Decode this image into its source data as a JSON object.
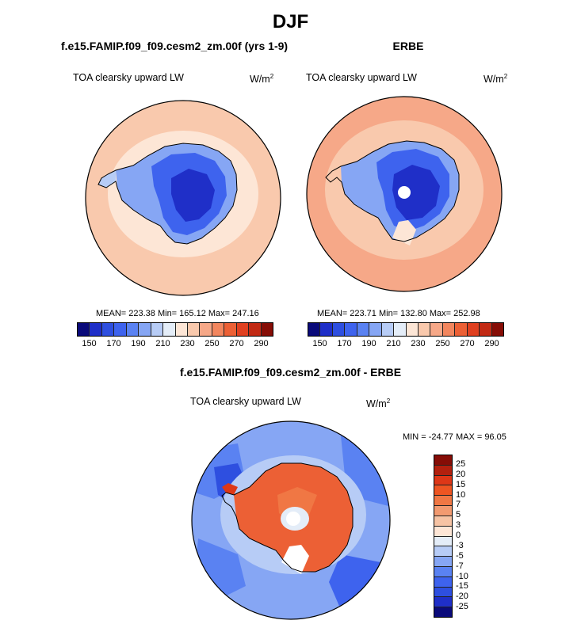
{
  "title": "DJF",
  "panels": [
    {
      "title": "f.e15.FAMIP.f09_f09.cesm2_zm.00f (yrs 1-9)",
      "variable": "TOA clearsky upward LW",
      "units_base": "W/m",
      "units_exp": "2",
      "stats": "MEAN= 223.38  Min= 165.12  Max= 247.16"
    },
    {
      "title": "ERBE",
      "variable": "TOA clearsky upward LW",
      "units_base": "W/m",
      "units_exp": "2",
      "stats": "MEAN= 223.71  Min= 132.80  Max= 252.98"
    },
    {
      "title": "f.e15.FAMIP.f09_f09.cesm2_zm.00f - ERBE",
      "variable": "TOA clearsky upward LW",
      "units_base": "W/m",
      "units_exp": "2",
      "stats": "MIN = -24.77 MAX =  96.05"
    }
  ],
  "colorbar_abs": {
    "colors": [
      "#0a0a7a",
      "#1f2fc8",
      "#2e4fe0",
      "#3e63ee",
      "#5a82f2",
      "#86a6f4",
      "#b7ccf6",
      "#e4edf8",
      "#fde6d6",
      "#f9c9ad",
      "#f6a888",
      "#f2865e",
      "#ec6035",
      "#e04020",
      "#c22a14",
      "#860d06"
    ],
    "ticks": [
      "150",
      "170",
      "190",
      "210",
      "230",
      "250",
      "270",
      "290"
    ]
  },
  "colorbar_diff": {
    "colors": [
      "#860d06",
      "#b3200e",
      "#de3717",
      "#ee5522",
      "#f07744",
      "#f29a70",
      "#f6c3a4",
      "#fde6d6",
      "#e4edf8",
      "#b7ccf6",
      "#86a6f4",
      "#5a82f2",
      "#3e63ee",
      "#2e4fe0",
      "#1f2fc8",
      "#0a0a7a"
    ],
    "labels": [
      "25",
      "20",
      "15",
      "10",
      "7",
      "5",
      "3",
      "0",
      "-3",
      "-5",
      "-7",
      "-10",
      "-15",
      "-20",
      "-25"
    ]
  },
  "chart_data": [
    {
      "type": "heatmap",
      "projection": "south-polar-stereographic",
      "title": "f.e15.FAMIP.f09_f09.cesm2_zm.00f (yrs 1-9)",
      "variable": "TOA clearsky upward LW",
      "units": "W/m2",
      "mean": 223.38,
      "min": 165.12,
      "max": 247.16,
      "contour_levels": [
        150,
        160,
        170,
        180,
        190,
        200,
        210,
        220,
        230,
        240,
        250,
        260,
        270,
        280,
        290
      ],
      "colors": {
        "ocean": "#f9c9ad",
        "sea_ice_ring": "#fde6d6",
        "antarctic_interior": "#2e4fe0"
      }
    },
    {
      "type": "heatmap",
      "projection": "south-polar-stereographic",
      "title": "ERBE",
      "variable": "TOA clearsky upward LW",
      "units": "W/m2",
      "mean": 223.71,
      "min": 132.8,
      "max": 252.98,
      "contour_levels": [
        150,
        160,
        170,
        180,
        190,
        200,
        210,
        220,
        230,
        240,
        250,
        260,
        270,
        280,
        290
      ],
      "colors": {
        "ocean": "#f6a888",
        "sea_ice_ring": "#f9c9ad",
        "antarctic_interior": "#2e4fe0",
        "missing_pole": "#ffffff"
      }
    },
    {
      "type": "heatmap",
      "projection": "south-polar-stereographic",
      "title": "f.e15.FAMIP.f09_f09.cesm2_zm.00f - ERBE",
      "variable": "TOA clearsky upward LW",
      "units": "W/m2",
      "min": -24.77,
      "max": 96.05,
      "contour_levels": [
        -25,
        -20,
        -15,
        -10,
        -7,
        -5,
        -3,
        0,
        3,
        5,
        7,
        10,
        15,
        20,
        25
      ],
      "colors": {
        "ocean": "#86a6f4",
        "antarctica": "#ec6035",
        "missing_pole": "#ffffff"
      }
    }
  ]
}
